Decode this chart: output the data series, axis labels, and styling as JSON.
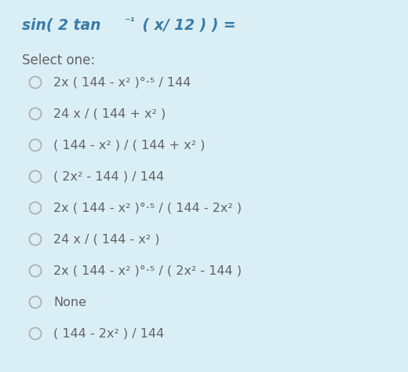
{
  "background_color": "#daeef5",
  "title_parts": [
    {
      "text": "sin( 2 tan",
      "style": "bold_italic"
    },
    {
      "text": "-1",
      "style": "superscript"
    },
    {
      "text": " ( x/ 12 ) ) =",
      "style": "bold_italic"
    }
  ],
  "select_one_text": "Select one:",
  "options": [
    "2x ( 144 - x² )°·⁵ / 144",
    "24 x / ( 144 + x² )",
    "( 144 - x² ) / ( 144 + x² )",
    "( 2x² - 144 ) / 144",
    "2x ( 144 - x² )°·⁵ / ( 144 - 2x² )",
    "24 x / ( 144 - x² )",
    "2x ( 144 - x² )°·⁵ / ( 2x² - 144 )",
    "None",
    "( 144 - 2x² ) / 144"
  ],
  "title_color": "#3a7ca8",
  "text_color": "#636363",
  "select_color": "#636363",
  "circle_color": "#b0b0b0",
  "title_fontsize": 13.5,
  "option_fontsize": 11.5,
  "select_fontsize": 12,
  "fig_width": 5.2,
  "fig_height": 4.74,
  "dpi": 100
}
